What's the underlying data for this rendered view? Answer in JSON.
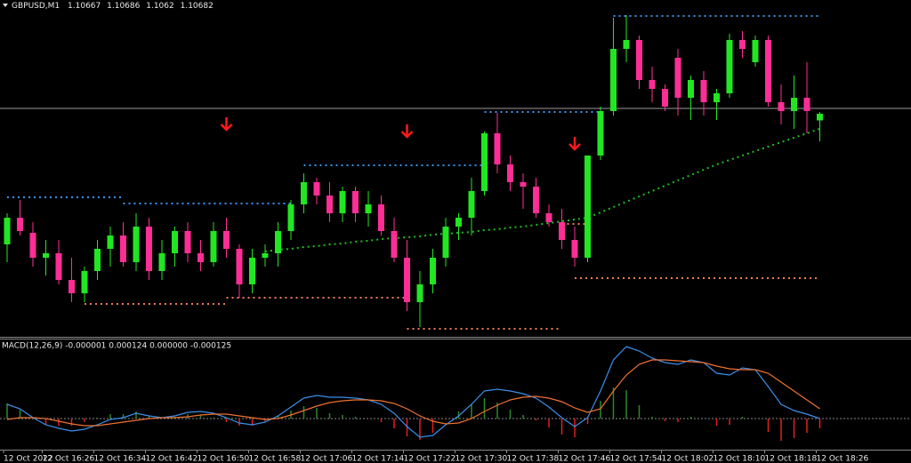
{
  "chart_data": [
    {
      "type": "candlestick",
      "symbol": "GBPUSD,M1",
      "categories": [
        "12 Oct 2022",
        null,
        null,
        "12 Oct 16:26",
        null,
        null,
        null,
        "12 Oct 16:34",
        null,
        null,
        null,
        "12 Oct 16:42",
        null,
        null,
        null,
        "12 Oct 16:50",
        null,
        null,
        null,
        "12 Oct 16:58",
        null,
        null,
        null,
        "12 Oct 17:06",
        null,
        null,
        null,
        "12 Oct 17:14",
        null,
        null,
        null,
        "12 Oct 17:22",
        null,
        null,
        null,
        "12 Oct 17:30",
        null,
        null,
        null,
        "12 Oct 17:38",
        null,
        null,
        null,
        "12 Oct 17:46",
        null,
        null,
        null,
        "12 Oct 17:54",
        null,
        null,
        null,
        "12 Oct 18:02",
        null,
        null,
        null,
        "12 Oct 18:10",
        null,
        null,
        null,
        "12 Oct 18:18",
        null,
        null,
        null,
        "12 Oct 18:26"
      ],
      "open": [
        1.10388,
        1.10448,
        1.10414,
        1.10358,
        1.10368,
        1.10308,
        1.10278,
        1.10328,
        1.10378,
        1.10408,
        1.10348,
        1.10428,
        1.10328,
        1.10368,
        1.10418,
        1.10368,
        1.10348,
        1.10418,
        1.10378,
        1.10298,
        1.10358,
        1.10368,
        1.10418,
        1.10478,
        1.10528,
        1.10498,
        1.10458,
        1.10508,
        1.10458,
        1.10478,
        1.10418,
        1.10358,
        1.10258,
        1.10298,
        1.10358,
        1.10428,
        1.10448,
        1.10508,
        1.10638,
        1.10568,
        1.10528,
        1.10518,
        1.10458,
        1.10438,
        1.10398,
        1.10358,
        1.10588,
        1.10688,
        1.10828,
        1.10848,
        1.10758,
        1.10738,
        1.10808,
        1.10718,
        1.10758,
        1.10708,
        1.10728,
        1.10848,
        1.10798,
        1.10848,
        1.10708,
        1.10688,
        1.10718,
        1.10667
      ],
      "high": [
        1.10458,
        1.10488,
        1.10438,
        1.10398,
        1.10398,
        1.10358,
        1.10338,
        1.10398,
        1.10428,
        1.10438,
        1.10458,
        1.10448,
        1.10398,
        1.10428,
        1.10438,
        1.10398,
        1.10438,
        1.10448,
        1.10388,
        1.10378,
        1.10388,
        1.10438,
        1.10488,
        1.10548,
        1.10538,
        1.10528,
        1.10518,
        1.10518,
        1.10508,
        1.10498,
        1.10448,
        1.10398,
        1.10328,
        1.10378,
        1.10448,
        1.10458,
        1.10538,
        1.10642,
        1.10684,
        1.10588,
        1.10548,
        1.10538,
        1.10478,
        1.10468,
        1.10428,
        1.10588,
        1.10698,
        1.10898,
        1.10904,
        1.10858,
        1.10788,
        1.10748,
        1.10828,
        1.10768,
        1.10778,
        1.10738,
        1.10862,
        1.10868,
        1.10858,
        1.10858,
        1.10748,
        1.10768,
        1.10798,
        1.10686
      ],
      "low": [
        1.10348,
        1.10408,
        1.10338,
        1.10318,
        1.10298,
        1.10258,
        1.10258,
        1.10308,
        1.10338,
        1.10338,
        1.10328,
        1.10308,
        1.10308,
        1.10338,
        1.10348,
        1.10328,
        1.10338,
        1.10358,
        1.10268,
        1.10278,
        1.10338,
        1.10338,
        1.10398,
        1.10458,
        1.10478,
        1.10438,
        1.10438,
        1.10438,
        1.10428,
        1.10408,
        1.10348,
        1.10238,
        1.10202,
        1.10278,
        1.10338,
        1.10398,
        1.10408,
        1.10498,
        1.10548,
        1.10508,
        1.10468,
        1.10448,
        1.10428,
        1.10378,
        1.10338,
        1.10348,
        1.10578,
        1.10678,
        1.10798,
        1.10738,
        1.10708,
        1.10688,
        1.10678,
        1.10668,
        1.10678,
        1.10668,
        1.10718,
        1.10808,
        1.10788,
        1.10698,
        1.10658,
        1.10648,
        1.10638,
        1.1062
      ],
      "close": [
        1.10448,
        1.10418,
        1.10358,
        1.10368,
        1.10308,
        1.10278,
        1.10328,
        1.10378,
        1.10408,
        1.10348,
        1.10428,
        1.10328,
        1.10368,
        1.10418,
        1.10368,
        1.10348,
        1.10418,
        1.10378,
        1.10298,
        1.10358,
        1.10368,
        1.10418,
        1.10478,
        1.10528,
        1.10498,
        1.10458,
        1.10508,
        1.10458,
        1.10478,
        1.10418,
        1.10358,
        1.10258,
        1.10298,
        1.10358,
        1.10428,
        1.10448,
        1.10508,
        1.10638,
        1.10568,
        1.10528,
        1.10518,
        1.10458,
        1.10438,
        1.10398,
        1.10358,
        1.10588,
        1.10688,
        1.10828,
        1.10848,
        1.10758,
        1.10738,
        1.10698,
        1.10718,
        1.10758,
        1.10708,
        1.10728,
        1.10848,
        1.10828,
        1.10848,
        1.10708,
        1.10688,
        1.10718,
        1.10688,
        1.10682
      ],
      "up_color": "#22e622",
      "down_color": "#ff2e96",
      "ylim": [
        1.10182,
        1.10938
      ],
      "price_line": 1.10694,
      "ma": {
        "color": "#1fbf1f",
        "values": [
          null,
          null,
          null,
          null,
          null,
          null,
          null,
          null,
          null,
          null,
          null,
          null,
          null,
          null,
          null,
          null,
          null,
          null,
          null,
          null,
          1.10372,
          1.10376,
          1.10378,
          1.10382,
          1.10384,
          1.10388,
          1.1039,
          1.10394,
          1.10396,
          1.104,
          1.10402,
          1.10404,
          1.10406,
          1.1041,
          1.10412,
          1.10414,
          1.10416,
          1.1042,
          1.10422,
          1.10426,
          1.10428,
          1.10432,
          1.10436,
          1.1044,
          1.10444,
          1.10448,
          1.1046,
          1.10472,
          1.10484,
          1.10496,
          1.10508,
          1.1052,
          1.10532,
          1.10544,
          1.10556,
          1.10568,
          1.10578,
          1.10588,
          1.10598,
          1.10608,
          1.10618,
          1.10628,
          1.10638,
          1.10648
        ]
      },
      "resistance": {
        "color": "#3a8ff0",
        "levels": [
          {
            "from": 0,
            "to": 9,
            "value": 1.10494
          },
          {
            "from": 9,
            "to": 22,
            "value": 1.1048
          },
          {
            "from": 23,
            "to": 37,
            "value": 1.10566
          },
          {
            "from": 37,
            "to": 46,
            "value": 1.10686
          },
          {
            "from": 47,
            "to": 63,
            "value": 1.10902
          }
        ]
      },
      "support": {
        "color": "#f07a5a",
        "levels": [
          {
            "from": 6,
            "to": 17,
            "value": 1.10254
          },
          {
            "from": 17,
            "to": 31,
            "value": 1.10268
          },
          {
            "from": 31,
            "to": 43,
            "value": 1.10198
          },
          {
            "from": 43,
            "to": 45,
            "value": 1.10434
          },
          {
            "from": 44,
            "to": 63,
            "value": 1.10312
          }
        ]
      },
      "signals": {
        "color": "#ff1a1a",
        "points": [
          {
            "index": 17,
            "value": 1.10658
          },
          {
            "index": 31,
            "value": 1.10642
          },
          {
            "index": 44,
            "value": 1.10614
          }
        ]
      }
    },
    {
      "type": "macd",
      "title": "MACD(12,26,9) -0.000001 0.000124 0.000000 -0.000125",
      "ylim": [
        -6.8e-05,
        0.000176
      ],
      "series": [
        {
          "kind": "histogram",
          "color": "#2a8a2a",
          "negative_color": "#e02020",
          "values": [
            3.4e-05,
            2e-05,
            0,
            -1.4e-05,
            -1.6e-05,
            -1.6e-05,
            -8e-06,
            2e-06,
            1e-05,
            1e-05,
            1.6e-05,
            6e-06,
            0,
            4e-06,
            1e-05,
            8e-06,
            2e-06,
            -8e-06,
            -1.6e-05,
            -1.6e-05,
            -6e-06,
            6e-06,
            1.8e-05,
            2.8e-05,
            2.4e-05,
            1.2e-05,
            8e-06,
            4e-06,
            0,
            -8e-06,
            -2.2e-05,
            -4e-05,
            -4.8e-05,
            -3.2e-05,
            -2e-06,
            1.6e-05,
            3.2e-05,
            4.6e-05,
            3.6e-05,
            2e-05,
            8e-06,
            -4e-06,
            -2e-05,
            -3.6e-05,
            -4.2e-05,
            -1.2e-05,
            4e-05,
            7e-05,
            6.4e-05,
            3e-05,
            4e-06,
            -6e-06,
            -8e-06,
            4e-06,
            0,
            -1.6e-05,
            -1.4e-05,
            4e-06,
            0,
            -3e-05,
            -5e-05,
            -4.4e-05,
            -3.2e-05,
            -2.2e-05
          ]
        },
        {
          "kind": "line",
          "color": "#3a8fe8",
          "values": [
            3.2e-05,
            2.2e-05,
            2e-06,
            -1.4e-05,
            -2.2e-05,
            -2.8e-05,
            -2.4e-05,
            -1.4e-05,
            -2e-06,
            2e-06,
            1.2e-05,
            6e-06,
            2e-06,
            6e-06,
            1.4e-05,
            1.6e-05,
            1.2e-05,
            2e-06,
            -1e-05,
            -1.4e-05,
            -8e-06,
            6e-06,
            2.6e-05,
            4.6e-05,
            5.2e-05,
            4.8e-05,
            4.8e-05,
            4.6e-05,
            4.2e-05,
            3.2e-05,
            1.2e-05,
            -1.8e-05,
            -4.2e-05,
            -3.8e-05,
            -1.4e-05,
            6e-06,
            3.2e-05,
            6.2e-05,
            6.6e-05,
            6.2e-05,
            5.6e-05,
            4.6e-05,
            2.6e-05,
            2e-06,
            -1.8e-05,
            2e-06,
            6.2e-05,
            0.000132,
            0.000162,
            0.000152,
            0.000136,
            0.000126,
            0.000122,
            0.000132,
            0.000126,
            0.000102,
            9.8e-05,
            0.000114,
            0.00011,
            7.2e-05,
            3.2e-05,
            1.8e-05,
            1e-05,
            0
          ]
        },
        {
          "kind": "line",
          "color": "#f07030",
          "values": [
            -2e-06,
            2e-06,
            2e-06,
            0,
            -6e-06,
            -1.2e-05,
            -1.6e-05,
            -1.6e-05,
            -1.2e-05,
            -8e-06,
            -4e-06,
            0,
            2e-06,
            2e-06,
            4e-06,
            8e-06,
            1e-05,
            1e-05,
            6e-06,
            2e-06,
            -2e-06,
            0,
            8e-06,
            1.8e-05,
            2.8e-05,
            3.6e-05,
            4e-05,
            4.2e-05,
            4.2e-05,
            4e-05,
            3.4e-05,
            2.2e-05,
            6e-06,
            -6e-06,
            -1.2e-05,
            -1e-05,
            0,
            1.6e-05,
            3e-05,
            4.2e-05,
            4.8e-05,
            5e-05,
            4.6e-05,
            3.8e-05,
            2.4e-05,
            1.4e-05,
            2.2e-05,
            6.2e-05,
            9.8e-05,
            0.000122,
            0.000132,
            0.000132,
            0.00013,
            0.000128,
            0.000126,
            0.000118,
            0.000112,
            0.00011,
            0.00011,
            0.000102,
            8.2e-05,
            6.2e-05,
            4.2e-05,
            2.2e-05
          ]
        }
      ]
    }
  ]
}
